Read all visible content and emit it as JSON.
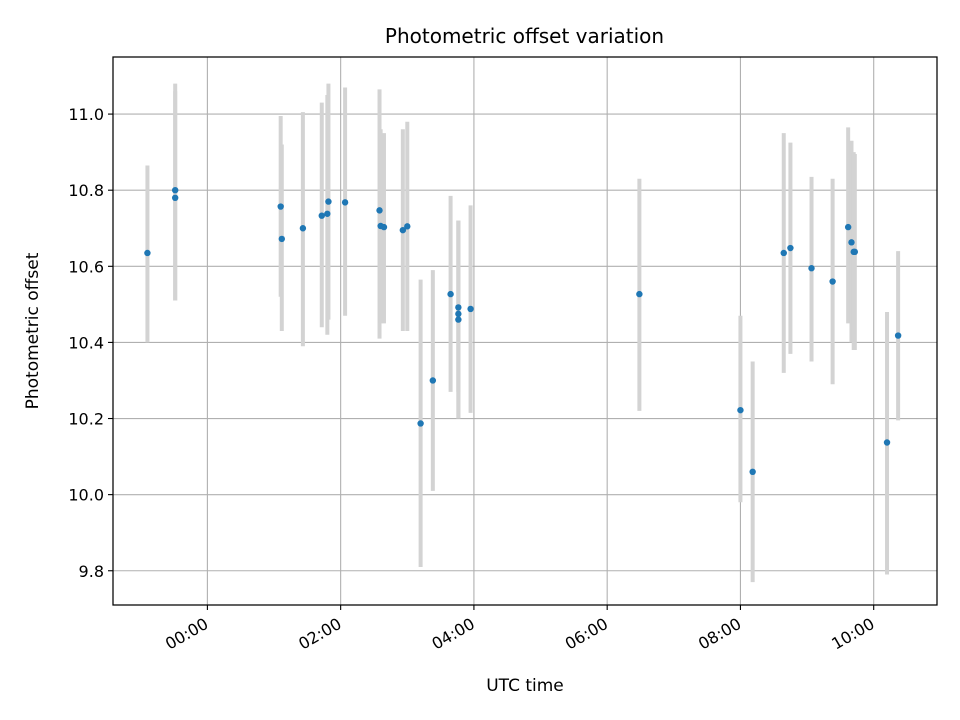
{
  "chart_data": {
    "type": "scatter",
    "title": "Photometric offset variation",
    "xlabel": "UTC time",
    "ylabel": "Photometric offset",
    "x_is_time": true,
    "xlim": [
      "22:35",
      "10:57"
    ],
    "ylim": [
      9.71,
      11.15
    ],
    "x_ticks": [
      "00:00",
      "02:00",
      "04:00",
      "06:00",
      "08:00",
      "10:00"
    ],
    "y_ticks": [
      9.8,
      10.0,
      10.2,
      10.4,
      10.6,
      10.8,
      11.0
    ],
    "grid": true,
    "marker_color": "#1f77b4",
    "errorbar_color": "#d3d3d3",
    "points": [
      {
        "t": "23:06",
        "y": 10.635,
        "lo": 10.4,
        "hi": 10.865
      },
      {
        "t": "23:31",
        "y": 10.8,
        "lo": 10.51,
        "hi": 11.08
      },
      {
        "t": "23:31",
        "y": 10.78,
        "lo": 10.51,
        "hi": 11.06
      },
      {
        "t": "01:06",
        "y": 10.757,
        "lo": 10.52,
        "hi": 10.995
      },
      {
        "t": "01:07",
        "y": 10.672,
        "lo": 10.43,
        "hi": 10.92
      },
      {
        "t": "01:26",
        "y": 10.7,
        "lo": 10.39,
        "hi": 11.005
      },
      {
        "t": "01:43",
        "y": 10.733,
        "lo": 10.44,
        "hi": 11.03
      },
      {
        "t": "01:48",
        "y": 10.738,
        "lo": 10.42,
        "hi": 11.05
      },
      {
        "t": "01:49",
        "y": 10.77,
        "lo": 10.46,
        "hi": 11.08
      },
      {
        "t": "02:04",
        "y": 10.768,
        "lo": 10.47,
        "hi": 11.07
      },
      {
        "t": "02:35",
        "y": 10.747,
        "lo": 10.41,
        "hi": 11.065
      },
      {
        "t": "02:36",
        "y": 10.706,
        "lo": 10.45,
        "hi": 10.96
      },
      {
        "t": "02:39",
        "y": 10.703,
        "lo": 10.45,
        "hi": 10.95
      },
      {
        "t": "02:56",
        "y": 10.695,
        "lo": 10.43,
        "hi": 10.96
      },
      {
        "t": "03:00",
        "y": 10.705,
        "lo": 10.43,
        "hi": 10.98
      },
      {
        "t": "03:12",
        "y": 10.187,
        "lo": 9.81,
        "hi": 10.565
      },
      {
        "t": "03:23",
        "y": 10.3,
        "lo": 10.01,
        "hi": 10.59
      },
      {
        "t": "03:39",
        "y": 10.527,
        "lo": 10.27,
        "hi": 10.785
      },
      {
        "t": "03:46",
        "y": 10.492,
        "lo": 10.27,
        "hi": 10.72
      },
      {
        "t": "03:46",
        "y": 10.475,
        "lo": 10.2,
        "hi": 10.72
      },
      {
        "t": "03:46",
        "y": 10.46,
        "lo": 10.2,
        "hi": 10.72
      },
      {
        "t": "03:57",
        "y": 10.488,
        "lo": 10.215,
        "hi": 10.76
      },
      {
        "t": "06:29",
        "y": 10.527,
        "lo": 10.22,
        "hi": 10.83
      },
      {
        "t": "08:00",
        "y": 10.222,
        "lo": 9.98,
        "hi": 10.47
      },
      {
        "t": "08:11",
        "y": 10.06,
        "lo": 9.77,
        "hi": 10.35
      },
      {
        "t": "08:39",
        "y": 10.635,
        "lo": 10.32,
        "hi": 10.95
      },
      {
        "t": "08:45",
        "y": 10.648,
        "lo": 10.37,
        "hi": 10.925
      },
      {
        "t": "09:04",
        "y": 10.595,
        "lo": 10.35,
        "hi": 10.835
      },
      {
        "t": "09:23",
        "y": 10.56,
        "lo": 10.29,
        "hi": 10.83
      },
      {
        "t": "09:37",
        "y": 10.703,
        "lo": 10.45,
        "hi": 10.965
      },
      {
        "t": "09:40",
        "y": 10.663,
        "lo": 10.4,
        "hi": 10.93
      },
      {
        "t": "09:42",
        "y": 10.638,
        "lo": 10.38,
        "hi": 10.9
      },
      {
        "t": "09:43",
        "y": 10.638,
        "lo": 10.38,
        "hi": 10.895
      },
      {
        "t": "10:12",
        "y": 10.137,
        "lo": 9.79,
        "hi": 10.48
      },
      {
        "t": "10:22",
        "y": 10.418,
        "lo": 10.195,
        "hi": 10.64
      }
    ]
  }
}
